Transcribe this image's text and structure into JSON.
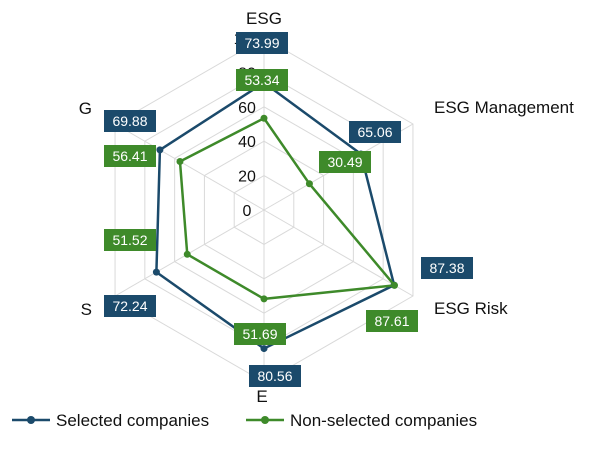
{
  "chart_data": {
    "type": "radar",
    "categories": [
      "ESG",
      "ESG Management",
      "ESG Risk",
      "E",
      "S",
      "G"
    ],
    "r_ticks": [
      0,
      20,
      40,
      60,
      80,
      100
    ],
    "rlim": [
      0,
      100
    ],
    "grid": true,
    "legend_position": "bottom",
    "series": [
      {
        "name": "Selected companies",
        "color": "#1b4a6b",
        "values": [
          73.99,
          65.06,
          87.38,
          80.56,
          72.24,
          69.88
        ]
      },
      {
        "name": "Non-selected companies",
        "color": "#3e8a2a",
        "values": [
          53.34,
          30.49,
          87.61,
          51.69,
          51.52,
          56.41
        ]
      }
    ]
  }
}
